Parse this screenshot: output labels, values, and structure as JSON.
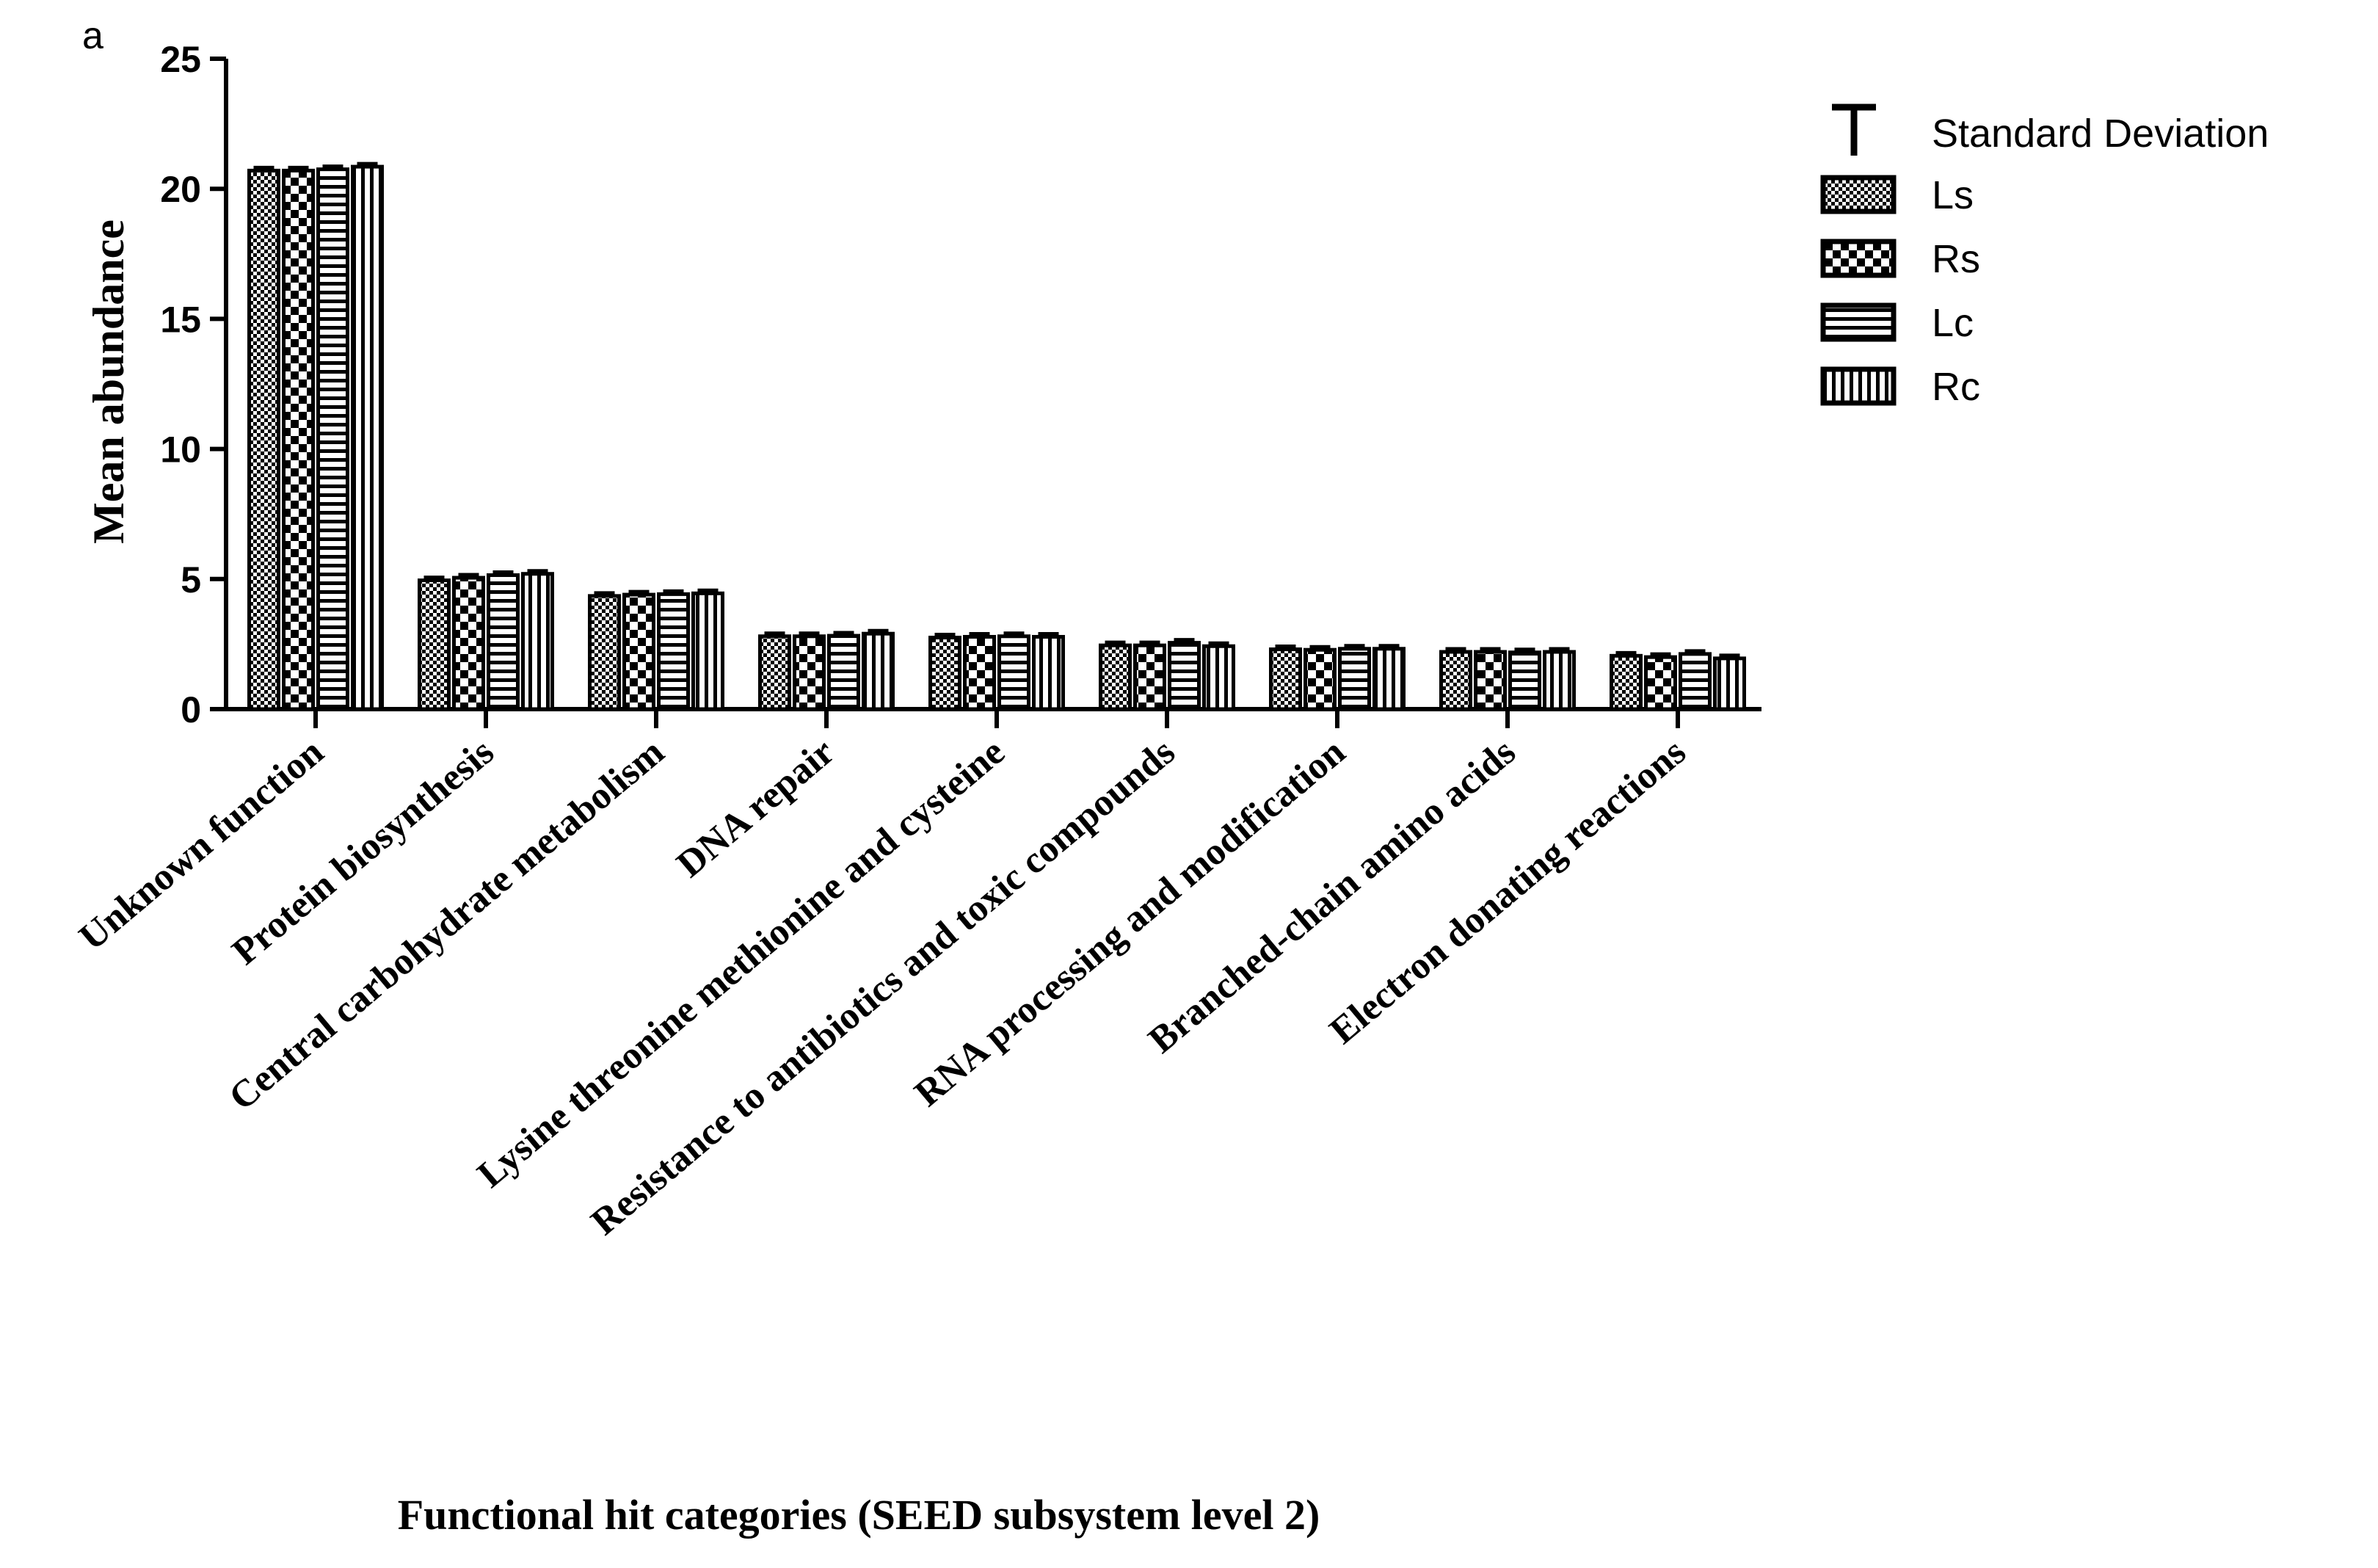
{
  "panel_label": "a",
  "chart_data": {
    "type": "bar",
    "title": "",
    "xlabel": "Functional hit categories (SEED subsystem level 2)",
    "ylabel": "Mean abundance",
    "ylim": [
      0,
      25
    ],
    "yticks": [
      "0",
      "5",
      "10",
      "15",
      "20",
      "25"
    ],
    "categories": [
      "Unknown function",
      "Protein biosynthesis",
      "Central carbohydrate metabolism",
      "DNA repair",
      "Lysine threonine methionine and cysteine",
      "Resistance to antibiotics and toxic compounds",
      "RNA processing and modification",
      "Branched-chain amino acids",
      "Electron donating reactions"
    ],
    "series": [
      {
        "name": "Ls",
        "pattern": "checker-fine",
        "values": [
          20.7,
          4.95,
          4.35,
          2.8,
          2.75,
          2.45,
          2.3,
          2.2,
          2.05
        ]
      },
      {
        "name": "Rs",
        "pattern": "checker-coarse",
        "values": [
          20.7,
          5.05,
          4.4,
          2.8,
          2.78,
          2.45,
          2.28,
          2.2,
          2.0
        ]
      },
      {
        "name": "Lc",
        "pattern": "horizontal-lines",
        "values": [
          20.75,
          5.15,
          4.42,
          2.82,
          2.8,
          2.55,
          2.32,
          2.18,
          2.12
        ]
      },
      {
        "name": "Rc",
        "pattern": "vertical-lines",
        "values": [
          20.85,
          5.2,
          4.45,
          2.9,
          2.78,
          2.42,
          2.32,
          2.2,
          1.95
        ]
      }
    ],
    "error_bars": "Standard Deviation",
    "legend": {
      "position": "top-right",
      "entries": [
        "Standard Deviation",
        "Ls",
        "Rs",
        "Lc",
        "Rc"
      ]
    },
    "grid": false,
    "colors": {
      "stroke": "#000000",
      "fill": "#ffffff"
    }
  }
}
